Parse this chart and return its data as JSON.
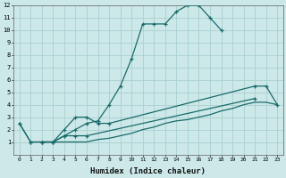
{
  "xlabel": "Humidex (Indice chaleur)",
  "bg_color": "#cce8e8",
  "grid_color": "#aad0d0",
  "line_color": "#1a6b6b",
  "xlim": [
    -0.5,
    23.5
  ],
  "ylim": [
    0,
    12
  ],
  "xticks": [
    0,
    1,
    2,
    3,
    4,
    5,
    6,
    7,
    8,
    9,
    10,
    11,
    12,
    13,
    14,
    15,
    16,
    17,
    18,
    19,
    20,
    21,
    22,
    23
  ],
  "yticks": [
    1,
    2,
    3,
    4,
    5,
    6,
    7,
    8,
    9,
    10,
    11,
    12
  ],
  "line1_x": [
    0,
    1,
    2,
    3,
    4,
    5,
    6,
    7,
    8,
    9,
    10,
    11,
    12,
    13,
    14,
    15,
    16,
    17,
    18
  ],
  "line1_y": [
    2.5,
    1.0,
    1.0,
    1.0,
    1.5,
    2.0,
    2.5,
    2.7,
    4.0,
    5.5,
    7.7,
    10.5,
    10.5,
    10.5,
    11.5,
    12.0,
    12.0,
    11.0,
    10.0
  ],
  "line2_x": [
    0,
    1,
    2,
    3,
    4,
    5,
    6,
    7,
    8,
    21,
    22,
    23
  ],
  "line2_y": [
    2.5,
    1.0,
    1.0,
    1.0,
    2.0,
    3.0,
    3.0,
    2.5,
    2.5,
    5.5,
    5.5,
    4.0
  ],
  "line3_x": [
    2,
    3,
    4,
    5,
    6,
    21
  ],
  "line3_y": [
    1.0,
    1.0,
    1.5,
    1.5,
    1.5,
    4.5
  ],
  "line4_x": [
    2,
    3,
    4,
    5,
    6,
    7,
    8,
    9,
    10,
    11,
    12,
    13,
    14,
    15,
    16,
    17,
    18,
    19,
    20,
    21,
    22,
    23
  ],
  "line4_y": [
    1.0,
    1.0,
    1.0,
    1.0,
    1.0,
    1.2,
    1.3,
    1.5,
    1.7,
    2.0,
    2.2,
    2.5,
    2.7,
    2.8,
    3.0,
    3.2,
    3.5,
    3.7,
    4.0,
    4.2,
    4.2,
    4.0
  ]
}
